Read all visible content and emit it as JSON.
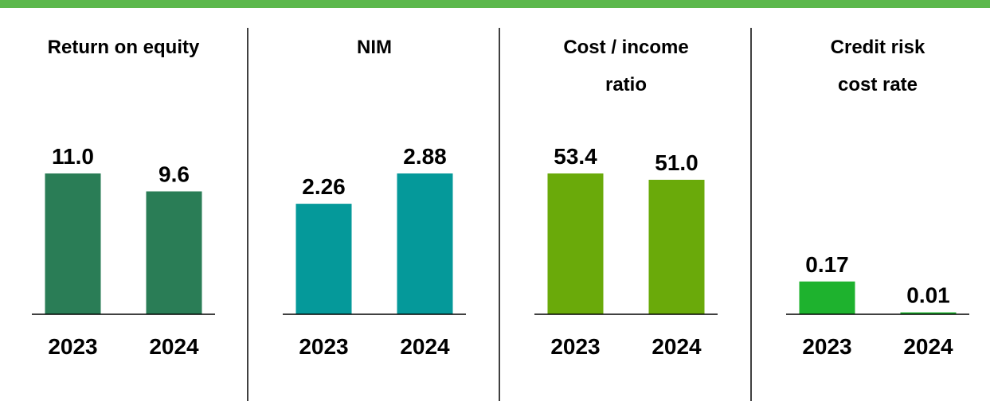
{
  "chart_data": [
    {
      "type": "bar",
      "title": "Return on equity",
      "categories": [
        "2023",
        "2024"
      ],
      "values": [
        11.0,
        9.6
      ],
      "value_labels": [
        "11.0",
        "9.6"
      ],
      "color": "#2a7d56",
      "ylim": [
        0,
        11
      ]
    },
    {
      "type": "bar",
      "title": "NIM",
      "categories": [
        "2023",
        "2024"
      ],
      "values": [
        2.26,
        2.88
      ],
      "value_labels": [
        "2.26",
        "2.88"
      ],
      "color": "#05999a",
      "ylim": [
        0,
        2.88
      ]
    },
    {
      "type": "bar",
      "title": "Cost / income ratio",
      "categories": [
        "2023",
        "2024"
      ],
      "values": [
        53.4,
        51.0
      ],
      "value_labels": [
        "53.4",
        "51.0"
      ],
      "color": "#6aaa0a",
      "ylim": [
        0,
        53.4
      ]
    },
    {
      "type": "bar",
      "title": "Credit risk cost rate",
      "categories": [
        "2023",
        "2024"
      ],
      "values": [
        0.17,
        0.01
      ],
      "value_labels": [
        "0.17",
        "0.01"
      ],
      "color": "#1eb22e",
      "ylim": [
        0,
        0.73
      ]
    }
  ]
}
